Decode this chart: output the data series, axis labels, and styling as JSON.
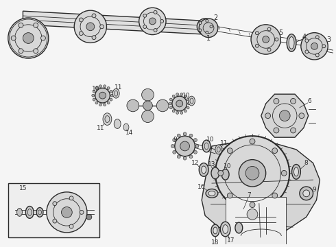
{
  "bg_color": "#f5f5f5",
  "line_color": "#2a2a2a",
  "fig_width": 4.9,
  "fig_height": 3.6,
  "dpi": 100
}
